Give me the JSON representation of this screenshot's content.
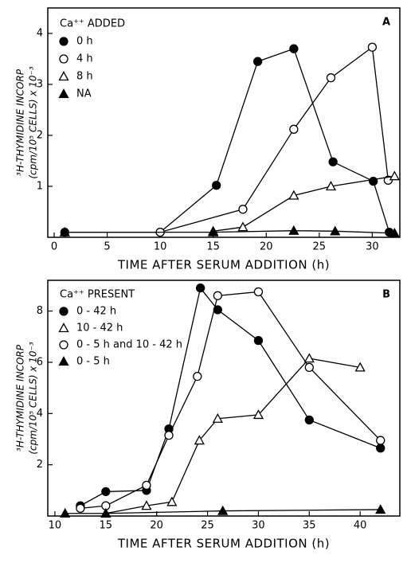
{
  "chart_data": [
    {
      "type": "line",
      "panel_label": "A",
      "legend_title": "Ca⁺⁺ ADDED",
      "xlabel": "TIME AFTER SERUM ADDITION (h)",
      "ylabel": [
        "³H-THYMIDINE INCORP",
        "(cpm/10⁵ CELLS) x 10⁻³"
      ],
      "xlim": [
        -0.6,
        32.6
      ],
      "ylim": [
        0,
        4.5
      ],
      "xticks": [
        0,
        5,
        10,
        15,
        20,
        25,
        30
      ],
      "yticks": [
        1,
        2,
        3,
        4
      ],
      "series": [
        {
          "name": "0 h",
          "color": "#000000",
          "marker": "circle",
          "filled": true,
          "x": [
            1,
            10,
            15.3,
            19.2,
            22.6,
            26.3,
            30.1,
            31.6
          ],
          "values": [
            0.1,
            0.1,
            1.02,
            3.45,
            3.7,
            1.48,
            1.1,
            0.1
          ]
        },
        {
          "name": "4 h",
          "color": "#000000",
          "marker": "circle",
          "filled": false,
          "x": [
            10,
            17.8,
            22.6,
            26.1,
            30,
            31.5
          ],
          "values": [
            0.1,
            0.55,
            2.12,
            3.13,
            3.73,
            1.12
          ]
        },
        {
          "name": "8 h",
          "color": "#000000",
          "marker": "triangle",
          "filled": false,
          "x": [
            15,
            17.8,
            22.6,
            26.1,
            32.1
          ],
          "values": [
            0.12,
            0.2,
            0.82,
            1.0,
            1.2
          ]
        },
        {
          "name": "NA",
          "color": "#000000",
          "marker": "triangle",
          "filled": true,
          "x": [
            1,
            15,
            22.6,
            26.5,
            32.1
          ],
          "values": [
            0.1,
            0.1,
            0.13,
            0.12,
            0.08
          ]
        }
      ]
    },
    {
      "type": "line",
      "panel_label": "B",
      "legend_title": "Ca⁺⁺ PRESENT",
      "xlabel": "TIME AFTER SERUM ADDITION (h)",
      "ylabel": [
        "³H-THYMIDINE INCORP",
        "(cpm/10⁵ CELLS) x 10⁻³"
      ],
      "xlim": [
        9.3,
        43.9
      ],
      "ylim": [
        0,
        9.2
      ],
      "xticks": [
        10,
        15,
        20,
        25,
        30,
        35,
        40
      ],
      "yticks": [
        2,
        4,
        6,
        8
      ],
      "series": [
        {
          "name": "0 - 42 h",
          "color": "#000000",
          "marker": "circle",
          "filled": true,
          "x": [
            12.5,
            15,
            19,
            21.2,
            24.3,
            26,
            30,
            35,
            42
          ],
          "values": [
            0.4,
            0.95,
            1.0,
            3.4,
            8.9,
            8.05,
            6.85,
            3.75,
            2.65
          ]
        },
        {
          "name": "10 - 42 h",
          "color": "#000000",
          "marker": "triangle",
          "filled": false,
          "x": [
            15,
            19,
            21.5,
            24.2,
            26,
            30,
            35,
            40
          ],
          "values": [
            0.1,
            0.4,
            0.55,
            2.95,
            3.8,
            3.95,
            6.15,
            5.8
          ]
        },
        {
          "name": "0 - 5 h and 10 - 42 h",
          "color": "#000000",
          "marker": "circle",
          "filled": false,
          "x": [
            12.5,
            15,
            19,
            21.2,
            24,
            26,
            30,
            35,
            42
          ],
          "values": [
            0.3,
            0.4,
            1.2,
            3.15,
            5.45,
            8.6,
            8.75,
            5.8,
            2.95
          ]
        },
        {
          "name": "0 - 5 h",
          "color": "#000000",
          "marker": "triangle",
          "filled": true,
          "x": [
            11,
            15,
            26.5,
            42
          ],
          "values": [
            0.1,
            0.1,
            0.2,
            0.25
          ]
        }
      ]
    }
  ]
}
